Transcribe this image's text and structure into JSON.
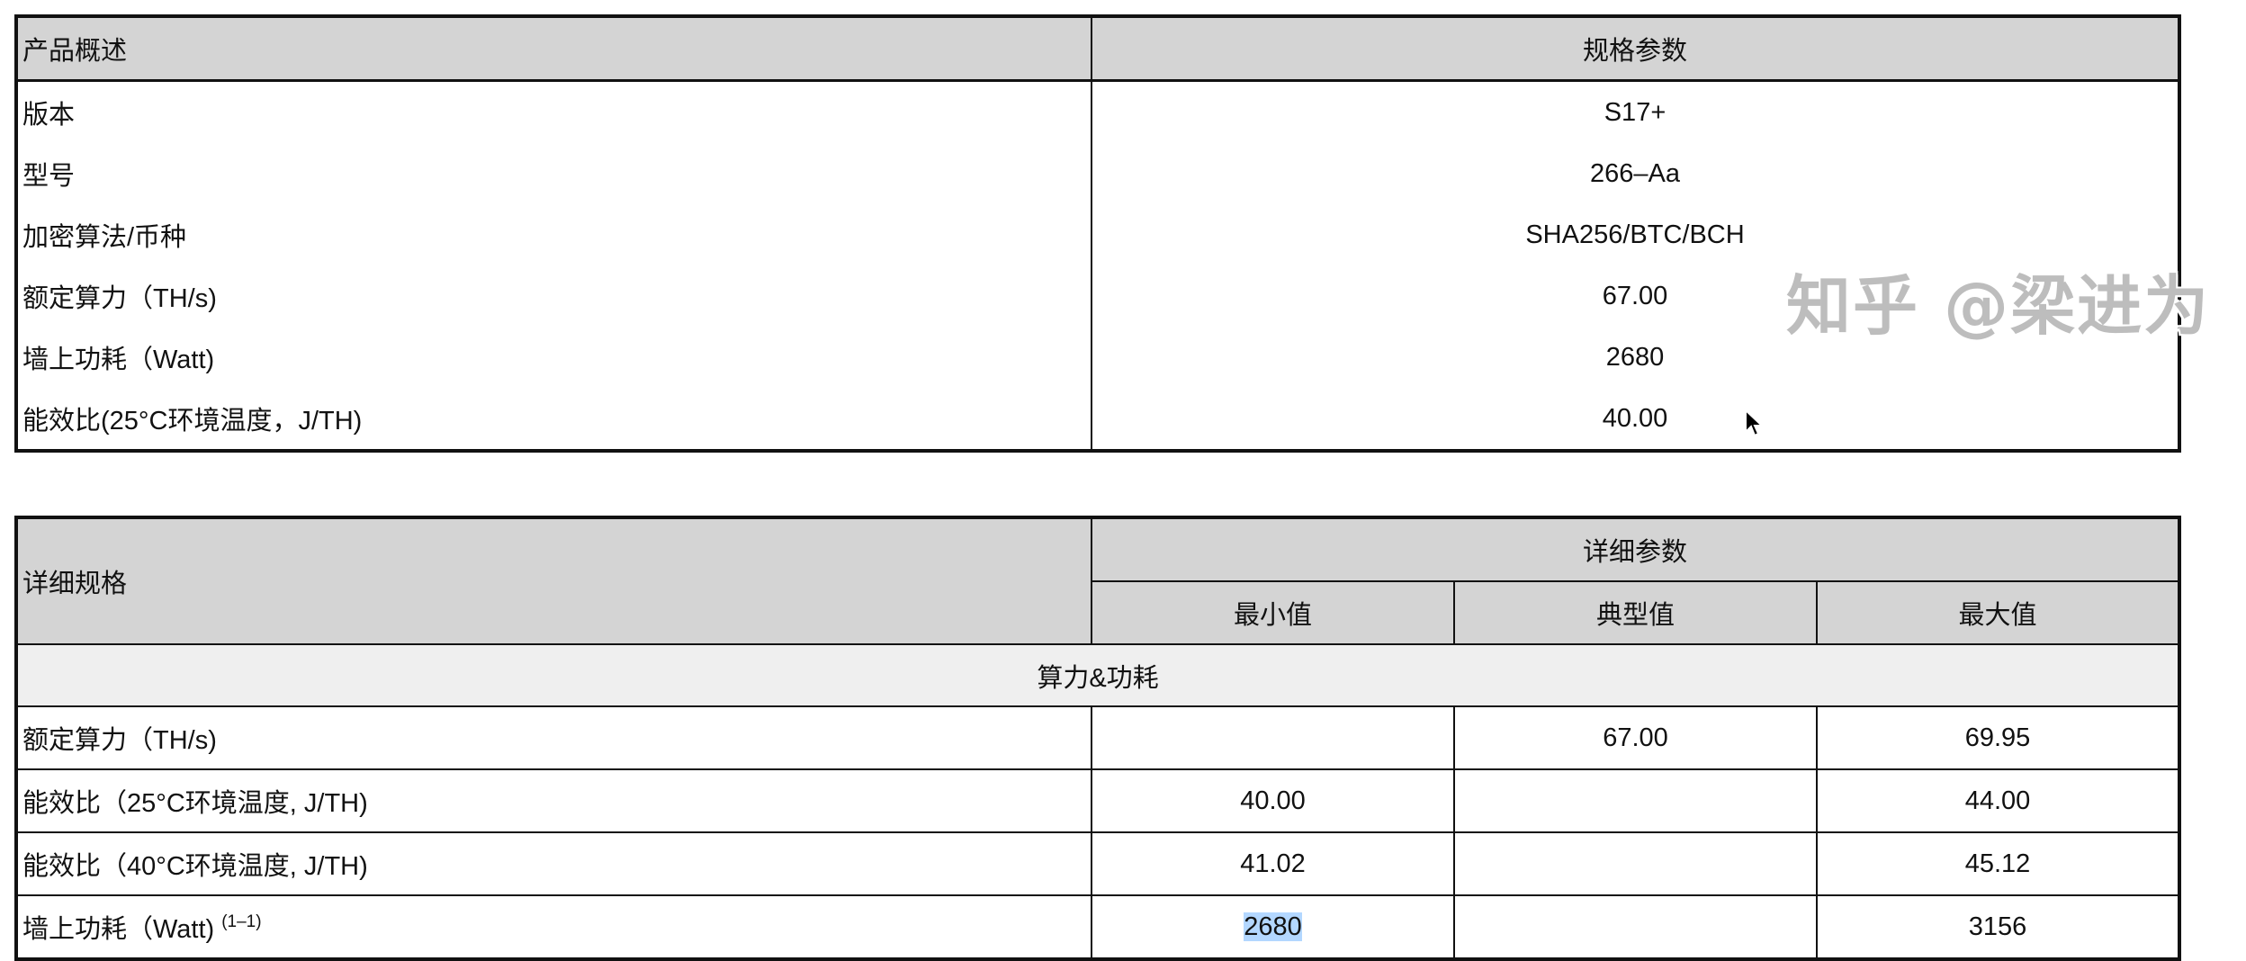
{
  "overview": {
    "header": [
      "产品概述",
      "规格参数"
    ],
    "rows": [
      {
        "label": "版本",
        "value": "S17+"
      },
      {
        "label": "型号",
        "value": "266–Aa"
      },
      {
        "label": "加密算法/币种",
        "value": "SHA256/BTC/BCH"
      },
      {
        "label": "额定算力（TH/s)",
        "value": "67.00"
      },
      {
        "label": "墙上功耗（Watt)",
        "value": "2680"
      },
      {
        "label": "能效比(25°C环境温度，J/TH)",
        "value": "40.00"
      }
    ]
  },
  "detail": {
    "header_left": "详细规格",
    "header_group": "详细参数",
    "columns": [
      "最小值",
      "典型值",
      "最大值"
    ],
    "section": "算力&功耗",
    "rows": [
      {
        "label": "额定算力（TH/s)",
        "min": "",
        "typ": "67.00",
        "max": "69.95"
      },
      {
        "label": "能效比（25°C环境温度, J/TH)",
        "min": "40.00",
        "typ": "",
        "max": "44.00"
      },
      {
        "label": "能效比（40°C环境温度, J/TH)",
        "min": "41.02",
        "typ": "",
        "max": "45.12"
      },
      {
        "label": "墙上功耗（Watt)",
        "sup": "(1–1)",
        "min": "2680",
        "typ": "",
        "max": "3156"
      }
    ]
  },
  "watermark": "知乎 @梁进为",
  "colors": {
    "header_bg": "#d4d4d4",
    "section_bg": "#efefef",
    "selection": "#b3d7ff"
  }
}
